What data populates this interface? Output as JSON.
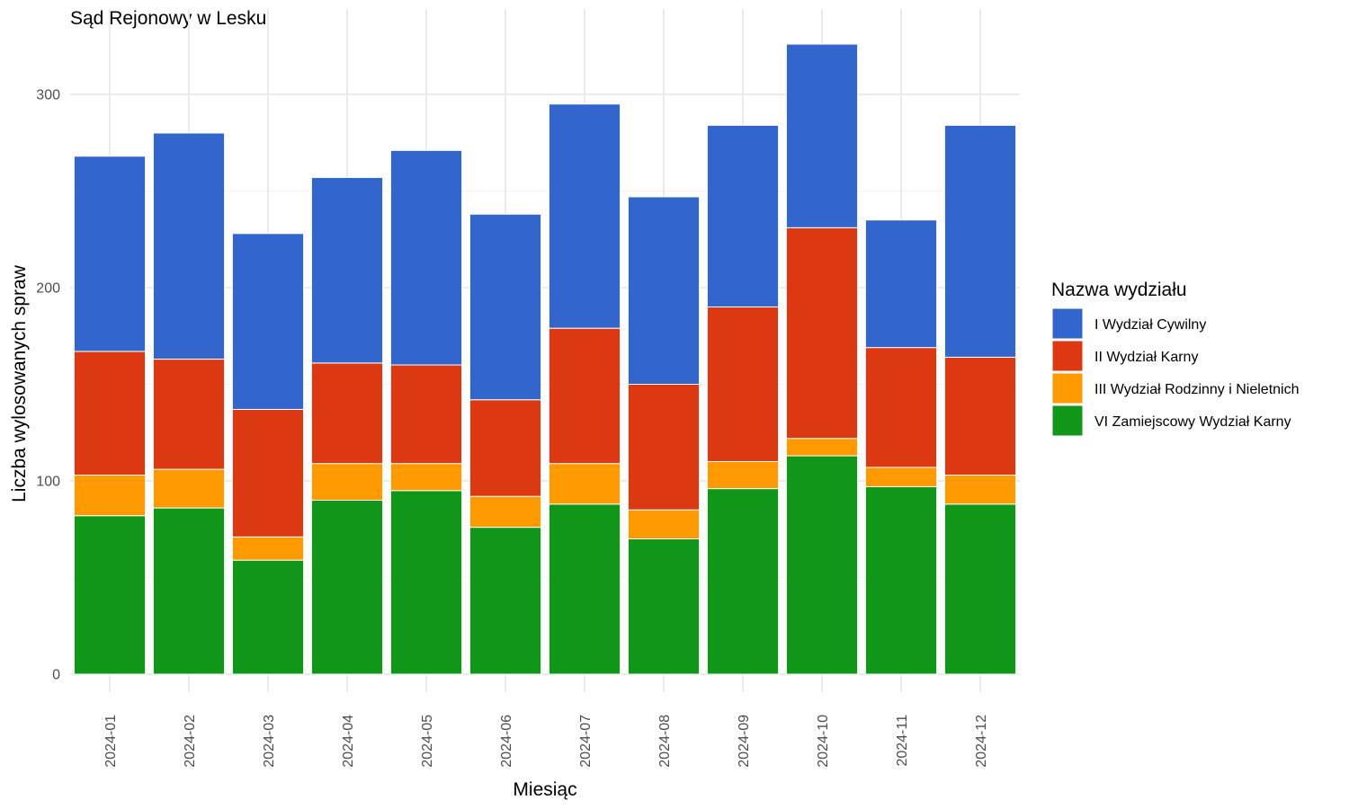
{
  "chart_data": {
    "type": "bar",
    "stacked": true,
    "title": "Sąd Rejonowy w Lesku",
    "xlabel": "Miesiąc",
    "ylabel": "Liczba wylosowanych spraw",
    "ylim": [
      0,
      330
    ],
    "yticks": [
      0,
      100,
      200,
      300
    ],
    "grid": true,
    "legend_title": "Nazwa wydziału",
    "legend_position": "right",
    "categories": [
      "2024-01",
      "2024-02",
      "2024-03",
      "2024-04",
      "2024-05",
      "2024-06",
      "2024-07",
      "2024-08",
      "2024-09",
      "2024-10",
      "2024-11",
      "2024-12"
    ],
    "series": [
      {
        "name": "I Wydział Cywilny",
        "color": "#3366cc",
        "values": [
          101,
          117,
          91,
          96,
          111,
          96,
          116,
          97,
          94,
          95,
          66,
          120
        ]
      },
      {
        "name": "II Wydział Karny",
        "color": "#dc3912",
        "values": [
          64,
          57,
          66,
          52,
          51,
          50,
          70,
          65,
          80,
          109,
          62,
          61
        ]
      },
      {
        "name": "III Wydział Rodzinny i Nieletnich",
        "color": "#ff9900",
        "values": [
          21,
          20,
          12,
          19,
          14,
          16,
          21,
          15,
          14,
          9,
          10,
          15
        ]
      },
      {
        "name": "VI Zamiejscowy Wydział Karny",
        "color": "#109618",
        "values": [
          82,
          86,
          59,
          90,
          95,
          76,
          88,
          70,
          96,
          113,
          97,
          88
        ]
      }
    ]
  }
}
